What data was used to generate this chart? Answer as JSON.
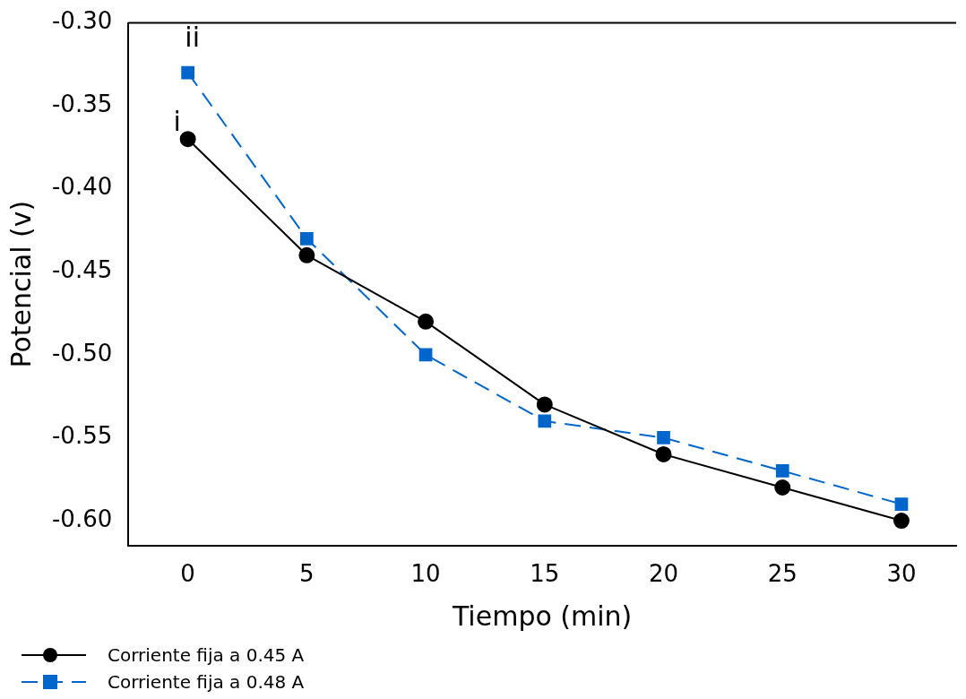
{
  "chart_data": {
    "type": "line",
    "xlabel": "Tiempo (min)",
    "ylabel": "Potencial (v)",
    "x": [
      0,
      5,
      10,
      15,
      20,
      25,
      30
    ],
    "series": [
      {
        "name": "Corriente fija a 0.45 A",
        "color": "#000000",
        "marker": "circle",
        "line_style": "solid",
        "values": [
          -0.37,
          -0.44,
          -0.48,
          -0.53,
          -0.56,
          -0.58,
          -0.6
        ]
      },
      {
        "name": "Corriente fija a 0.48 A",
        "color": "#0066cc",
        "marker": "square",
        "line_style": "dashed",
        "values": [
          -0.33,
          -0.43,
          -0.5,
          -0.54,
          -0.55,
          -0.57,
          -0.59
        ]
      }
    ],
    "xlim": [
      -2.5,
      32.3
    ],
    "xticks": [
      0,
      5,
      10,
      15,
      20,
      25,
      30
    ],
    "ylim": [
      -0.615,
      -0.3
    ],
    "yticks": [
      {
        "value": -0.3,
        "label": "-0.30"
      },
      {
        "value": -0.35,
        "label": "-0.35"
      },
      {
        "value": -0.4,
        "label": "-0.40"
      },
      {
        "value": -0.45,
        "label": "-0.45"
      },
      {
        "value": -0.5,
        "label": "-0.50"
      },
      {
        "value": -0.55,
        "label": "-0.55"
      },
      {
        "value": -0.6,
        "label": "-0.60"
      }
    ],
    "annotations": [
      {
        "text": "i",
        "x": 0,
        "y": -0.37
      },
      {
        "text": "ii",
        "x": 0,
        "y": -0.33
      }
    ],
    "grid": false,
    "legend": "bottom left"
  }
}
